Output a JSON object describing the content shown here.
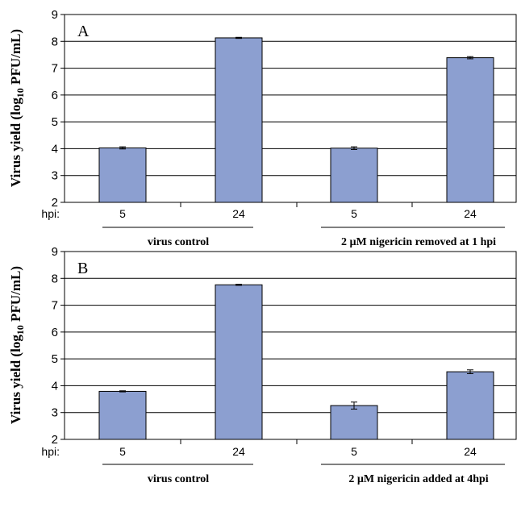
{
  "chart_data": [
    {
      "type": "bar",
      "panel_label": "A",
      "ylabel_parts": [
        "Virus yield (log",
        "10",
        " PFU/mL)"
      ],
      "ylim": [
        2,
        9
      ],
      "yticks": [
        2,
        3,
        4,
        5,
        6,
        7,
        8,
        9
      ],
      "grid": true,
      "hpi_label": "hpi:",
      "categories": [
        "5",
        "24",
        "5",
        "24"
      ],
      "values": [
        4.03,
        8.13,
        4.02,
        7.39
      ],
      "errors": [
        0.04,
        0.02,
        0.05,
        0.04
      ],
      "groups": [
        {
          "label": "virus control",
          "members": [
            0,
            1
          ]
        },
        {
          "label": "2 µM nigericin removed at 1 hpi",
          "members": [
            2,
            3
          ]
        }
      ],
      "bar_color": "#8c9fd0"
    },
    {
      "type": "bar",
      "panel_label": "B",
      "ylabel_parts": [
        "Virus yield (log",
        "10",
        " PFU/mL)"
      ],
      "ylim": [
        2,
        9
      ],
      "yticks": [
        2,
        3,
        4,
        5,
        6,
        7,
        8,
        9
      ],
      "grid": true,
      "hpi_label": "hpi:",
      "categories": [
        "5",
        "24",
        "5",
        "24"
      ],
      "values": [
        3.79,
        7.76,
        3.26,
        4.52
      ],
      "errors": [
        0.02,
        0.02,
        0.13,
        0.07
      ],
      "groups": [
        {
          "label": "virus control",
          "members": [
            0,
            1
          ]
        },
        {
          "label": "2 µM nigericin added at 4hpi",
          "members": [
            2,
            3
          ]
        }
      ],
      "bar_color": "#8c9fd0"
    }
  ]
}
